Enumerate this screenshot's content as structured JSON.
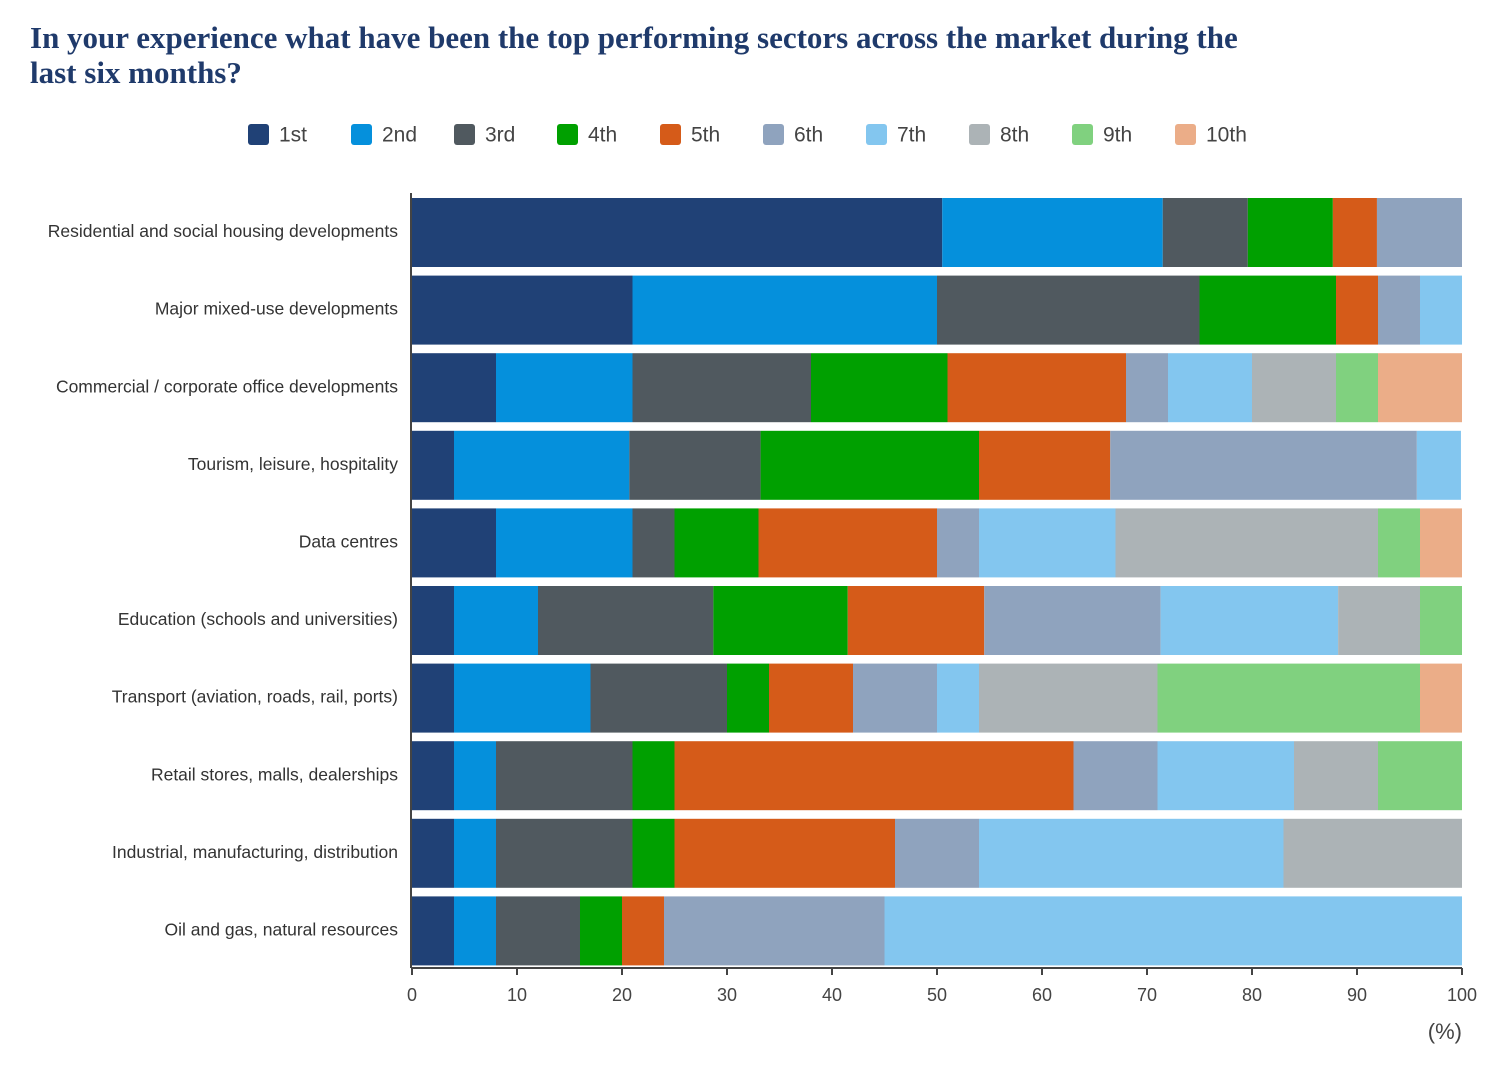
{
  "chart_data": {
    "type": "stacked-bar-horizontal",
    "title": [
      "In your experience what have been the top performing sectors across the market during the",
      "last six months?"
    ],
    "x_label": "(%)",
    "categories": [
      "Residential and social housing developments",
      "Major mixed-use developments",
      "Commercial / corporate office developments",
      "Tourism, leisure, hospitality",
      "Data centres",
      "Education (schools and universities)",
      "Transport (aviation, roads, rail, ports)",
      "Retail stores, malls, dealerships",
      "Industrial, manufacturing, distribution",
      "Oil and gas, natural resources"
    ],
    "series": [
      {
        "name": "1st",
        "color": "#204176",
        "values": [
          50.5,
          21,
          8,
          4,
          8,
          4,
          4,
          4,
          4,
          4
        ]
      },
      {
        "name": "2nd",
        "color": "#0590dc",
        "values": [
          21,
          29,
          13,
          16.7,
          13,
          8,
          13,
          4,
          4,
          4
        ]
      },
      {
        "name": "3rd",
        "color": "#50595f",
        "values": [
          8.1,
          25,
          17,
          12.5,
          4,
          16.7,
          13,
          13,
          13,
          8
        ]
      },
      {
        "name": "4th",
        "color": "#00a000",
        "values": [
          8.1,
          13,
          13,
          20.8,
          8,
          12.8,
          4,
          4,
          4,
          4
        ]
      },
      {
        "name": "5th",
        "color": "#d55b19",
        "values": [
          4.2,
          4,
          17,
          12.5,
          17,
          13,
          8,
          38,
          21,
          4
        ]
      },
      {
        "name": "6th",
        "color": "#8fa3be",
        "values": [
          8.1,
          4,
          4,
          29.2,
          4,
          16.8,
          8,
          8,
          8,
          21
        ]
      },
      {
        "name": "7th",
        "color": "#83c6ef",
        "values": [
          0,
          4,
          8,
          4.2,
          13,
          16.9,
          4,
          13,
          29,
          55
        ]
      },
      {
        "name": "8th",
        "color": "#acb3b6",
        "values": [
          0,
          0,
          8,
          0,
          25,
          7.8,
          17,
          8,
          17,
          0
        ]
      },
      {
        "name": "9th",
        "color": "#80d17f",
        "values": [
          0,
          0,
          4,
          0,
          4,
          4,
          25,
          8,
          0,
          0
        ]
      },
      {
        "name": "10th",
        "color": "#ebad88",
        "values": [
          0,
          0,
          8,
          0,
          4,
          0,
          4,
          0,
          0,
          0
        ]
      }
    ],
    "xlim": [
      0,
      100
    ],
    "xticks": [
      0,
      10,
      20,
      30,
      40,
      50,
      60,
      70,
      80,
      90,
      100
    ],
    "legend": "top"
  }
}
